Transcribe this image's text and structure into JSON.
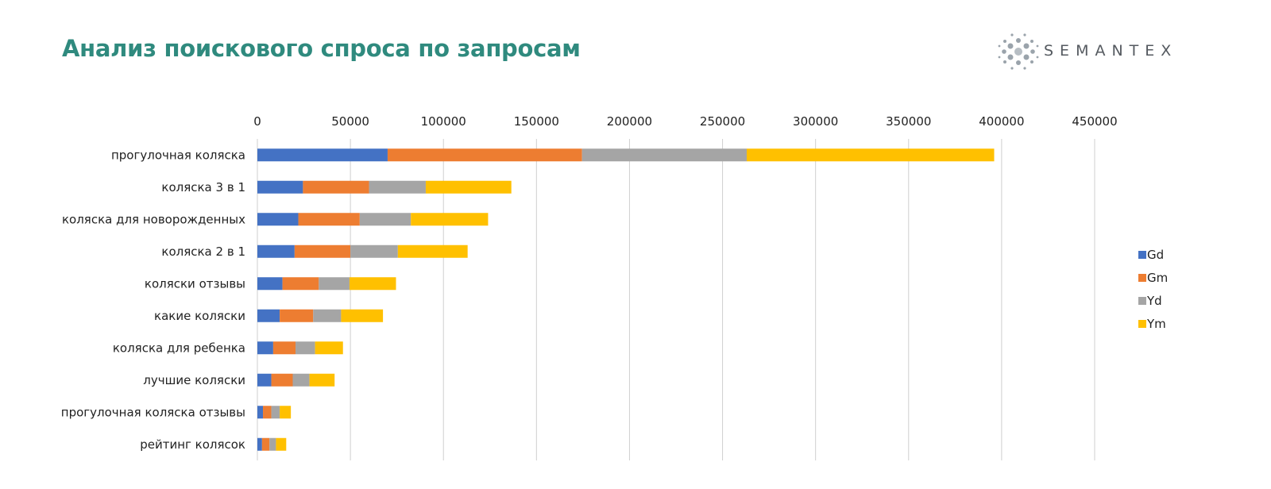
{
  "header": {
    "title": "Анализ поискового спроса по запросам",
    "logo_text": "SEMANTEX"
  },
  "chart_data": {
    "type": "bar",
    "orientation": "horizontal",
    "stacked": true,
    "title": "",
    "xlabel": "",
    "ylabel": "",
    "xlim": [
      0,
      450000
    ],
    "x_ticks": [
      0,
      50000,
      100000,
      150000,
      200000,
      250000,
      300000,
      350000,
      400000,
      450000
    ],
    "x_axis_position": "top",
    "grid": true,
    "legend_position": "right",
    "categories": [
      "прогулочная коляска",
      "коляска 3 в 1",
      "коляска для новорожденных",
      "коляска 2 в 1",
      "коляски отзывы",
      "какие коляски",
      "коляска для ребенка",
      "лучшие коляски",
      "прогулочная коляска отзывы",
      "рейтинг колясок"
    ],
    "series": [
      {
        "name": "Gd",
        "color": "#4472c4",
        "values": [
          70000,
          24500,
          22000,
          20000,
          13500,
          12000,
          8500,
          7500,
          3000,
          2500
        ]
      },
      {
        "name": "Gm",
        "color": "#ed7d31",
        "values": [
          104500,
          35500,
          33000,
          30000,
          19500,
          18000,
          12000,
          11500,
          4500,
          4000
        ]
      },
      {
        "name": "Yd",
        "color": "#a5a5a5",
        "values": [
          88500,
          30500,
          27500,
          25500,
          16500,
          15000,
          10500,
          9000,
          4500,
          3500
        ]
      },
      {
        "name": "Ym",
        "color": "#ffc000",
        "values": [
          133000,
          46000,
          41500,
          37500,
          25000,
          22500,
          15000,
          13500,
          6000,
          5500
        ]
      }
    ]
  }
}
